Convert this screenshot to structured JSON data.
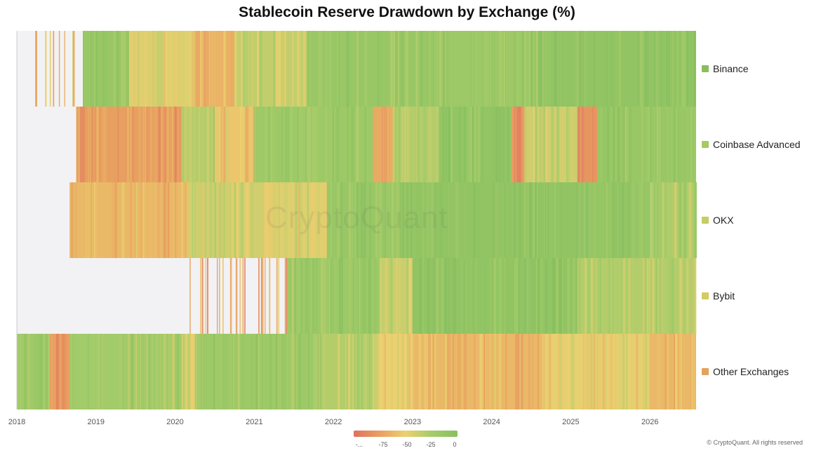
{
  "chart_data": {
    "type": "heatmap",
    "title": "Stablecoin Reserve Drawdown by Exchange (%)",
    "x_ticks": [
      "2018",
      "2019",
      "2020",
      "2021",
      "2022",
      "2023",
      "2024",
      "2025",
      "2026"
    ],
    "x_range": [
      "2018-01",
      "2026-08"
    ],
    "rows": [
      {
        "name": "Binance",
        "color": "#8bbd5c",
        "data_start": "2018-02",
        "segments": [
          {
            "from": "2018-02",
            "to": "2018-10",
            "value": -60,
            "sparse": true
          },
          {
            "from": "2018-11",
            "to": "2019-06",
            "value": -15
          },
          {
            "from": "2019-06",
            "to": "2020-04",
            "value": -45
          },
          {
            "from": "2020-04",
            "to": "2020-10",
            "value": -65
          },
          {
            "from": "2020-10",
            "to": "2021-09",
            "value": -35
          },
          {
            "from": "2021-09",
            "to": "2023-04",
            "value": -15
          },
          {
            "from": "2023-04",
            "to": "2024-08",
            "value": -18
          },
          {
            "from": "2024-08",
            "to": "2026-08",
            "value": -8
          }
        ]
      },
      {
        "name": "Coinbase Advanced",
        "color": "#a6c962",
        "data_start": "2018-10",
        "segments": [
          {
            "from": "2018-10",
            "to": "2020-02",
            "value": -75
          },
          {
            "from": "2020-02",
            "to": "2020-07",
            "value": -30
          },
          {
            "from": "2020-07",
            "to": "2021-01",
            "value": -55
          },
          {
            "from": "2021-01",
            "to": "2022-07",
            "value": -18
          },
          {
            "from": "2022-07",
            "to": "2022-10",
            "value": -70
          },
          {
            "from": "2022-10",
            "to": "2023-05",
            "value": -30
          },
          {
            "from": "2023-05",
            "to": "2024-04",
            "value": -10
          },
          {
            "from": "2024-04",
            "to": "2024-06",
            "value": -78
          },
          {
            "from": "2024-06",
            "to": "2025-02",
            "value": -40
          },
          {
            "from": "2025-02",
            "to": "2025-05",
            "value": -80
          },
          {
            "from": "2025-05",
            "to": "2026-08",
            "value": -15
          }
        ]
      },
      {
        "name": "OKX",
        "color": "#c6cc66",
        "data_start": "2018-09",
        "segments": [
          {
            "from": "2018-09",
            "to": "2020-03",
            "value": -62
          },
          {
            "from": "2020-03",
            "to": "2021-03",
            "value": -40
          },
          {
            "from": "2021-03",
            "to": "2021-12",
            "value": -45
          },
          {
            "from": "2021-12",
            "to": "2022-11",
            "value": -15
          },
          {
            "from": "2022-11",
            "to": "2025-03",
            "value": -8
          },
          {
            "from": "2025-03",
            "to": "2026-01",
            "value": -12
          },
          {
            "from": "2026-01",
            "to": "2026-08",
            "value": -28
          }
        ]
      },
      {
        "name": "Bybit",
        "color": "#d2cc62",
        "data_start": "2020-03",
        "segments": [
          {
            "from": "2020-03",
            "to": "2021-06",
            "value": -70,
            "sparse": true
          },
          {
            "from": "2021-06",
            "to": "2022-08",
            "value": -18
          },
          {
            "from": "2022-08",
            "to": "2023-01",
            "value": -38
          },
          {
            "from": "2023-01",
            "to": "2025-02",
            "value": -8
          },
          {
            "from": "2025-02",
            "to": "2026-08",
            "value": -30
          }
        ]
      },
      {
        "name": "Other Exchanges",
        "color": "#e4a25e",
        "data_start": "2018-01",
        "segments": [
          {
            "from": "2018-01",
            "to": "2018-06",
            "value": -20
          },
          {
            "from": "2018-06",
            "to": "2018-09",
            "value": -75
          },
          {
            "from": "2018-09",
            "to": "2020-02",
            "value": -22
          },
          {
            "from": "2020-02",
            "to": "2020-04",
            "value": -45
          },
          {
            "from": "2020-04",
            "to": "2021-10",
            "value": -18
          },
          {
            "from": "2021-10",
            "to": "2022-07",
            "value": -30
          },
          {
            "from": "2022-07",
            "to": "2023-01",
            "value": -50
          },
          {
            "from": "2023-01",
            "to": "2024-09",
            "value": -62
          },
          {
            "from": "2024-09",
            "to": "2026-01",
            "value": -48
          },
          {
            "from": "2026-01",
            "to": "2026-08",
            "value": -62
          }
        ]
      }
    ],
    "color_scale": {
      "stops": [
        {
          "value": -100,
          "color": "#e07060"
        },
        {
          "value": -75,
          "color": "#e8a060"
        },
        {
          "value": -50,
          "color": "#ecd070"
        },
        {
          "value": -25,
          "color": "#a6cc6a"
        },
        {
          "value": 0,
          "color": "#88c060"
        }
      ],
      "tick_labels": [
        "-...",
        "-75",
        "-50",
        "-25",
        "0"
      ],
      "no_data_color": "#f2f2f4"
    },
    "legend_position": "right"
  },
  "watermark": "CryptoQuant",
  "copyright": "© CryptoQuant. All rights reserved"
}
